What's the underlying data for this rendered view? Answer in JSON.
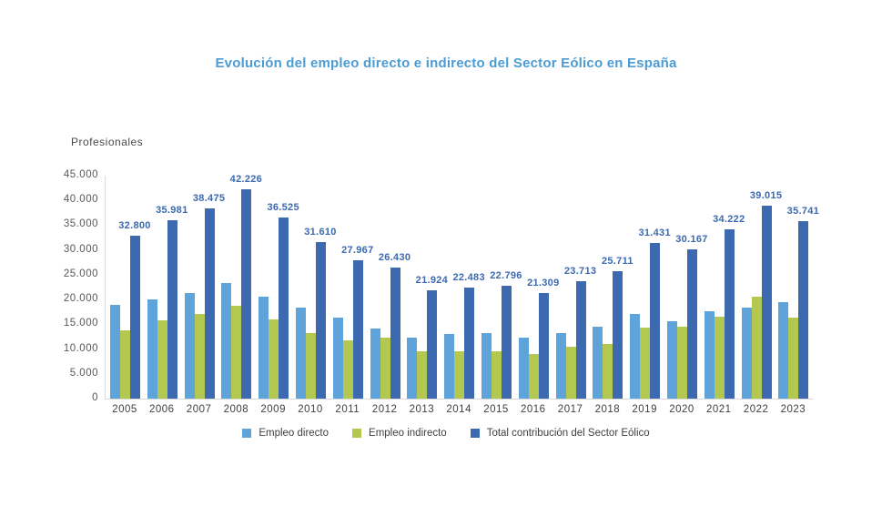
{
  "title": "Evolución del empleo directo e indirecto del Sector Eólico en España",
  "ylabel": "Profesionales",
  "colors": {
    "title": "#4b9cd3",
    "data_label": "#3b69b1",
    "axis_text": "#595959",
    "category_text": "#404040",
    "axis_line": "#d9d9d9",
    "background": "#ffffff",
    "empleo_directo": "#5ea3da",
    "empleo_indirecto": "#b3c851",
    "total": "#3c69b0"
  },
  "chart_data": {
    "type": "bar",
    "title": "Evolución del empleo directo e indirecto del Sector Eólico en España",
    "xlabel": "",
    "ylabel": "Profesionales",
    "categories": [
      "2005",
      "2006",
      "2007",
      "2008",
      "2009",
      "2010",
      "2011",
      "2012",
      "2013",
      "2014",
      "2015",
      "2016",
      "2017",
      "2018",
      "2019",
      "2020",
      "2021",
      "2022",
      "2023"
    ],
    "series": [
      {
        "name": "Empleo directo",
        "color": "#5ea3da",
        "values": [
          19000,
          20100,
          21300,
          23400,
          20600,
          18400,
          16300,
          14100,
          12400,
          13000,
          13200,
          12300,
          13300,
          14600,
          17100,
          15700,
          17600,
          18400,
          19400
        ]
      },
      {
        "name": "Empleo indirecto",
        "color": "#b3c851",
        "values": [
          13800,
          15881,
          17175,
          18826,
          15925,
          13210,
          11667,
          12330,
          9524,
          9483,
          9596,
          9009,
          10413,
          11111,
          14331,
          14467,
          16622,
          20615,
          16341
        ]
      },
      {
        "name": "Total contribución del Sector Eólico",
        "color": "#3c69b0",
        "values": [
          32800,
          35981,
          38475,
          42226,
          36525,
          31610,
          27967,
          26430,
          21924,
          22483,
          22796,
          21309,
          23713,
          25711,
          31431,
          30167,
          34222,
          39015,
          35741
        ],
        "labels": [
          "32.800",
          "35.981",
          "38.475",
          "42.226",
          "36.525",
          "31.610",
          "27.967",
          "26.430",
          "21.924",
          "22.483",
          "22.796",
          "21.309",
          "23.713",
          "25.711",
          "31.431",
          "30.167",
          "34.222",
          "39.015",
          "35.741"
        ]
      }
    ],
    "ylim": [
      0,
      45000
    ],
    "ytick_step": 5000,
    "ytick_labels": [
      "0",
      "5.000",
      "10.000",
      "15.000",
      "20.000",
      "25.000",
      "30.000",
      "35.000",
      "40.000",
      "45.000"
    ],
    "grid": false,
    "legend_position": "bottom"
  }
}
